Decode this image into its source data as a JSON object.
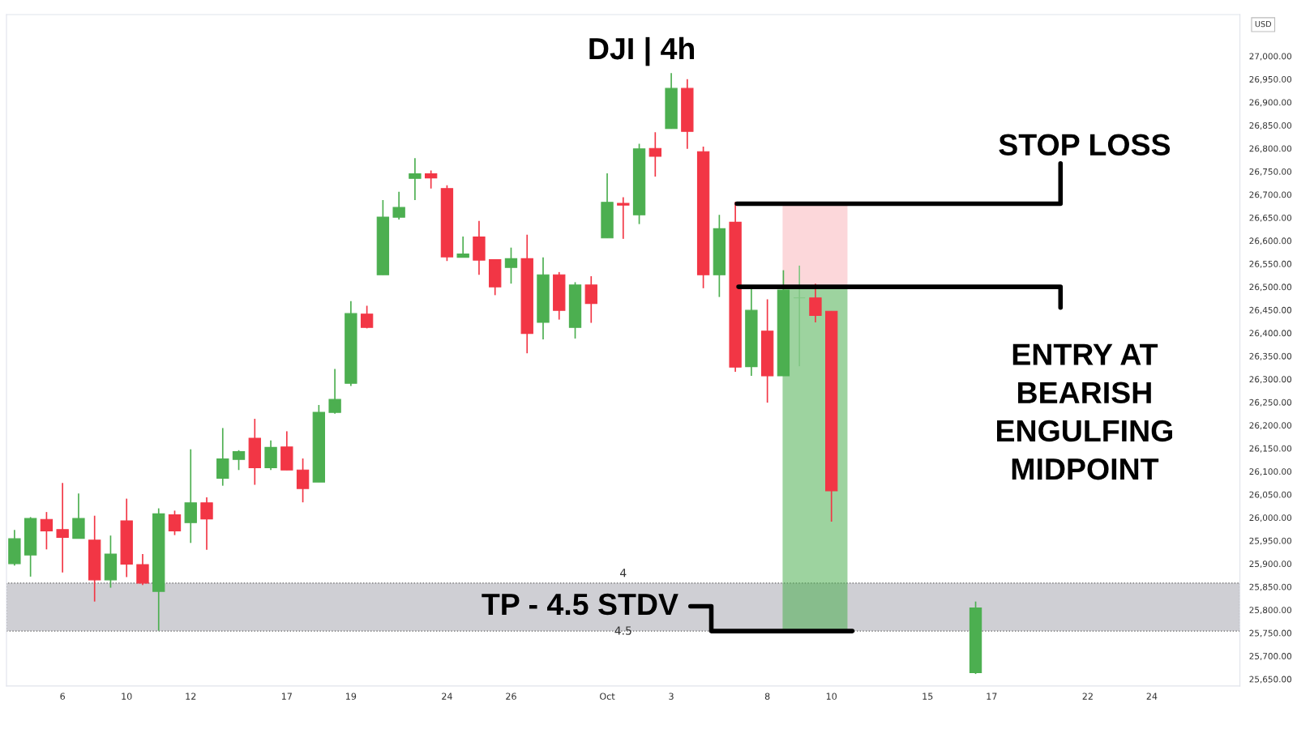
{
  "chart_data": {
    "type": "candlestick",
    "title": "DJI | 4h",
    "categories": [
      null,
      null,
      null,
      "6",
      null,
      null,
      null,
      "10",
      null,
      null,
      null,
      "12",
      null,
      null,
      null,
      null,
      null,
      "17",
      null,
      null,
      null,
      "19",
      null,
      null,
      null,
      null,
      null,
      "24",
      null,
      null,
      null,
      "26",
      null,
      null,
      null,
      null,
      null,
      "Oct",
      null,
      null,
      null,
      "3",
      null,
      null,
      null,
      null,
      null,
      "8",
      null,
      null,
      null,
      "10",
      null,
      null,
      null,
      null,
      null,
      "15",
      null,
      null,
      null,
      "17",
      null,
      null,
      null,
      null,
      null,
      "22",
      null,
      null,
      null,
      "24",
      null,
      null,
      null,
      null,
      null
    ],
    "ohlc": [
      [
        25900,
        25973,
        25896,
        25954
      ],
      [
        25919,
        26001,
        25872,
        25998
      ],
      [
        25996,
        26012,
        25931,
        25971
      ],
      [
        25974,
        26075,
        25881,
        25957
      ],
      [
        25955,
        26052,
        25955,
        25998
      ],
      [
        25951,
        26004,
        25818,
        25865
      ],
      [
        25865,
        25961,
        25848,
        25921
      ],
      [
        25993,
        26041,
        25871,
        25899
      ],
      [
        25898,
        25921,
        25854,
        25858
      ],
      [
        25840,
        26020,
        25755,
        26008
      ],
      [
        26006,
        26015,
        25962,
        25971
      ],
      [
        25989,
        26148,
        25945,
        26032
      ],
      [
        26032,
        26044,
        25930,
        25997
      ],
      [
        26085,
        26194,
        26069,
        26127
      ],
      [
        26126,
        26146,
        26103,
        26143
      ],
      [
        26172,
        26214,
        26071,
        26108
      ],
      [
        26108,
        26167,
        26103,
        26152
      ],
      [
        26153,
        26187,
        26103,
        26103
      ],
      [
        26103,
        26128,
        26033,
        26063
      ],
      [
        26077,
        26244,
        26077,
        26228
      ],
      [
        26228,
        26322,
        26225,
        26256
      ],
      [
        26291,
        26469,
        26285,
        26442
      ],
      [
        26441,
        26459,
        26410,
        26412
      ],
      [
        26526,
        26688,
        26526,
        26651
      ],
      [
        26651,
        26706,
        26646,
        26672
      ],
      [
        26735,
        26779,
        26688,
        26745
      ],
      [
        26745,
        26752,
        26713,
        26736
      ],
      [
        26713,
        26720,
        26556,
        26565
      ],
      [
        26564,
        26609,
        26564,
        26571
      ],
      [
        26608,
        26643,
        26526,
        26558
      ],
      [
        26559,
        26559,
        26482,
        26500
      ],
      [
        26542,
        26585,
        26507,
        26561
      ],
      [
        26561,
        26613,
        26356,
        26399
      ],
      [
        26423,
        26564,
        26386,
        26526
      ],
      [
        26526,
        26532,
        26429,
        26449
      ],
      [
        26412,
        26510,
        26388,
        26504
      ],
      [
        26504,
        26523,
        26422,
        26464
      ],
      [
        26606,
        26746,
        26606,
        26683
      ],
      [
        26681,
        26694,
        26604,
        26677
      ],
      [
        26656,
        26810,
        26636,
        26799
      ],
      [
        26800,
        26835,
        26739,
        26783
      ],
      [
        26843,
        26963,
        26843,
        26930
      ],
      [
        26930,
        26950,
        26799,
        26837
      ],
      [
        26793,
        26804,
        26497,
        26526
      ],
      [
        26526,
        26656,
        26478,
        26626
      ],
      [
        26640,
        26684,
        26316,
        26326
      ],
      [
        26327,
        26495,
        26307,
        26449
      ],
      [
        26404,
        26473,
        26249,
        26307
      ],
      [
        26307,
        26536,
        26307,
        26493
      ],
      [
        26476,
        26546,
        26328,
        26476
      ],
      [
        26476,
        26507,
        26423,
        26438
      ],
      [
        26447,
        26447,
        25991,
        26058
      ],
      null,
      null,
      null,
      null,
      null,
      null,
      null,
      null,
      [
        25664,
        25818,
        25661,
        25804
      ],
      null,
      null,
      null,
      null,
      null,
      null,
      null,
      null,
      null,
      null,
      null,
      null,
      null,
      null,
      null,
      null
    ],
    "colors": [
      "#4caf50",
      "#4caf50",
      "#f23645",
      "#f23645",
      "#4caf50",
      "#f23645",
      "#4caf50",
      "#f23645",
      "#f23645",
      "#4caf50",
      "#f23645",
      "#4caf50",
      "#f23645",
      "#4caf50",
      "#4caf50",
      "#f23645",
      "#4caf50",
      "#f23645",
      "#f23645",
      "#4caf50",
      "#4caf50",
      "#4caf50",
      "#f23645",
      "#4caf50",
      "#4caf50",
      "#4caf50",
      "#f23645",
      "#f23645",
      "#4caf50",
      "#f23645",
      "#f23645",
      "#4caf50",
      "#f23645",
      "#4caf50",
      "#f23645",
      "#4caf50",
      "#f23645",
      "#4caf50",
      "#f23645",
      "#4caf50",
      "#f23645",
      "#4caf50",
      "#f23645",
      "#f23645",
      "#4caf50",
      "#f23645",
      "#4caf50",
      "#f23645",
      "#4caf50",
      "#81c784",
      "#f23645",
      "#f23645",
      null,
      null,
      null,
      null,
      null,
      null,
      null,
      null,
      "#4caf50",
      null,
      null,
      null,
      null,
      null,
      null,
      null,
      null,
      null,
      null,
      null,
      null,
      null,
      null,
      null,
      null
    ],
    "ylim": [
      25635,
      27090
    ],
    "yticks": [
      {
        "value": 25650,
        "label": "25,650.00"
      },
      {
        "value": 25700,
        "label": "25,700.00"
      },
      {
        "value": 25750,
        "label": "25,750.00"
      },
      {
        "value": 25800,
        "label": "25,800.00"
      },
      {
        "value": 25850,
        "label": "25,850.00"
      },
      {
        "value": 25900,
        "label": "25,900.00"
      },
      {
        "value": 25950,
        "label": "25,950.00"
      },
      {
        "value": 26000,
        "label": "26,000.00"
      },
      {
        "value": 26050,
        "label": "26,050.00"
      },
      {
        "value": 26100,
        "label": "26,100.00"
      },
      {
        "value": 26150,
        "label": "26,150.00"
      },
      {
        "value": 26200,
        "label": "26,200.00"
      },
      {
        "value": 26250,
        "label": "26,250.00"
      },
      {
        "value": 26300,
        "label": "26,300.00"
      },
      {
        "value": 26350,
        "label": "26,350.00"
      },
      {
        "value": 26400,
        "label": "26,400.00"
      },
      {
        "value": 26450,
        "label": "26,450.00"
      },
      {
        "value": 26500,
        "label": "26,500.00"
      },
      {
        "value": 26550,
        "label": "26,550.00"
      },
      {
        "value": 26600,
        "label": "26,600.00"
      },
      {
        "value": 26650,
        "label": "26,650.00"
      },
      {
        "value": 26700,
        "label": "26,700.00"
      },
      {
        "value": 26750,
        "label": "26,750.00"
      },
      {
        "value": 26800,
        "label": "26,800.00"
      },
      {
        "value": 26850,
        "label": "26,850.00"
      },
      {
        "value": 26900,
        "label": "26,900.00"
      },
      {
        "value": 26950,
        "label": "26,950.00"
      },
      {
        "value": 27000,
        "label": "27,000.00"
      }
    ],
    "bands": [
      {
        "axis": "y",
        "from": 25754,
        "to": 25858,
        "color": "#cfcfd4"
      },
      {
        "axis": "y",
        "from": 26500,
        "to": 26680,
        "color": "#f23645"
      },
      {
        "axis": "y",
        "from": 25754,
        "to": 26500,
        "color": "#4caf50"
      }
    ],
    "ref_lines": [
      {
        "axis": "y",
        "value": 26680,
        "label": "STOP LOSS",
        "color": "#000000",
        "line_style": "solid"
      },
      {
        "axis": "y",
        "value": 26500,
        "label": "ENTRY AT\nBEARISH\nENGULFING\nMIDPOINT",
        "color": "#000000",
        "line_style": "solid"
      },
      {
        "axis": "y",
        "value": 25754,
        "label": "TP - 4.5 STDV",
        "color": "#000000",
        "line_style": "solid"
      }
    ],
    "annotations": [
      "4",
      "4.5",
      "USD"
    ]
  }
}
